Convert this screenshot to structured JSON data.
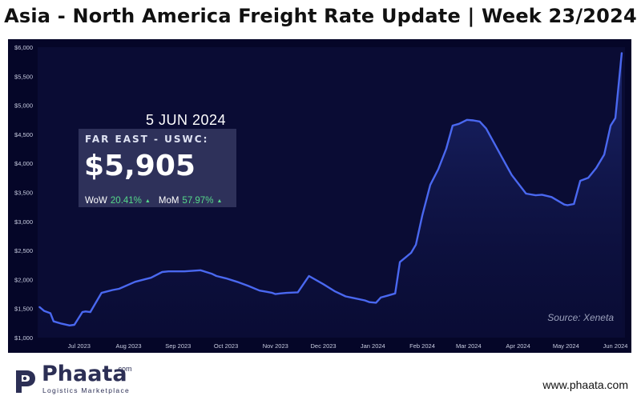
{
  "title": "Asia - North America Freight Rate Update | Week 23/2024",
  "info": {
    "date": "5 JUN 2024",
    "route": "FAR EAST - USWC:",
    "value": "$5,905",
    "wow_label": "WoW",
    "wow_value": "20.41%",
    "mom_label": "MoM",
    "mom_value": "57.97%"
  },
  "source": "Source: Xeneta",
  "footer": {
    "brand": "Phaata",
    "brand_suffix": ".com",
    "tagline": "Logistics Marketplace",
    "website": "www.phaata.com"
  },
  "colors": {
    "background": "#050628",
    "line": "#4a68f0",
    "accent_green": "#55d98a"
  },
  "chart_data": {
    "type": "area",
    "title": "Asia - North America Freight Rate Update | Week 23/2024",
    "series": [
      {
        "name": "FAR EAST - USWC",
        "x": [
          "2023-06-06",
          "2023-06-09",
          "2023-06-13",
          "2023-06-15",
          "2023-06-20",
          "2023-06-25",
          "2023-06-28",
          "2023-07-03",
          "2023-07-05",
          "2023-07-08",
          "2023-07-15",
          "2023-07-18",
          "2023-07-22",
          "2023-07-26",
          "2023-08-05",
          "2023-08-12",
          "2023-08-15",
          "2023-08-22",
          "2023-08-26",
          "2023-09-05",
          "2023-09-15",
          "2023-09-22",
          "2023-09-25",
          "2023-10-01",
          "2023-10-08",
          "2023-10-15",
          "2023-10-22",
          "2023-10-26",
          "2023-10-30",
          "2023-11-01",
          "2023-11-04",
          "2023-11-08",
          "2023-11-15",
          "2023-11-22",
          "2023-12-01",
          "2023-12-08",
          "2023-12-15",
          "2023-12-20",
          "2023-12-27",
          "2023-12-30",
          "2024-01-03",
          "2024-01-06",
          "2024-01-10",
          "2024-01-15",
          "2024-01-18",
          "2024-01-25",
          "2024-01-28",
          "2024-02-01",
          "2024-02-06",
          "2024-02-11",
          "2024-02-16",
          "2024-02-20",
          "2024-02-24",
          "2024-02-29",
          "2024-03-04",
          "2024-03-08",
          "2024-03-12",
          "2024-03-18",
          "2024-03-22",
          "2024-03-28",
          "2024-04-06",
          "2024-04-12",
          "2024-04-16",
          "2024-04-22",
          "2024-04-30",
          "2024-05-02",
          "2024-05-06",
          "2024-05-10",
          "2024-05-15",
          "2024-05-20",
          "2024-05-25",
          "2024-05-29",
          "2024-06-01",
          "2024-06-05"
        ],
        "values": [
          1530,
          1460,
          1420,
          1280,
          1240,
          1210,
          1220,
          1440,
          1450,
          1440,
          1770,
          1790,
          1820,
          1840,
          1960,
          2010,
          2030,
          2130,
          2140,
          2140,
          2160,
          2100,
          2060,
          2020,
          1960,
          1890,
          1810,
          1790,
          1770,
          1750,
          1760,
          1770,
          1780,
          2060,
          1920,
          1800,
          1710,
          1680,
          1640,
          1610,
          1600,
          1690,
          1720,
          1760,
          2300,
          2460,
          2600,
          3100,
          3630,
          3900,
          4250,
          4650,
          4680,
          4750,
          4740,
          4720,
          4600,
          4300,
          4100,
          3800,
          3480,
          3450,
          3460,
          3420,
          3290,
          3280,
          3300,
          3700,
          3750,
          3920,
          4150,
          4650,
          4780,
          5905
        ]
      }
    ],
    "xlabel": "",
    "ylabel": "",
    "xticks": [
      "Jul 2023",
      "Aug 2023",
      "Sep 2023",
      "Oct 2023",
      "Nov 2023",
      "Dec 2023",
      "Jan 2024",
      "Feb 2024",
      "Mar 2024",
      "Apr 2024",
      "May 2024",
      "Jun 2024"
    ],
    "xtick_dates": [
      "2023-07-01",
      "2023-08-01",
      "2023-09-01",
      "2023-10-01",
      "2023-11-01",
      "2023-12-01",
      "2024-01-01",
      "2024-02-01",
      "2024-03-01",
      "2024-04-01",
      "2024-05-01",
      "2024-06-01"
    ],
    "xlim": [
      "2023-06-05",
      "2024-06-07"
    ],
    "yticks": [
      1000,
      1500,
      2000,
      2500,
      3000,
      3500,
      4000,
      4500,
      5000,
      5500,
      6000
    ],
    "ytick_labels": [
      "$1,000",
      "$1,500",
      "$2,000",
      "$2,500",
      "$3,000",
      "$3,500",
      "$4,000",
      "$4,500",
      "$5,000",
      "$5,500",
      "$6,000"
    ],
    "ylim": [
      1000,
      6000
    ],
    "grid": false
  }
}
